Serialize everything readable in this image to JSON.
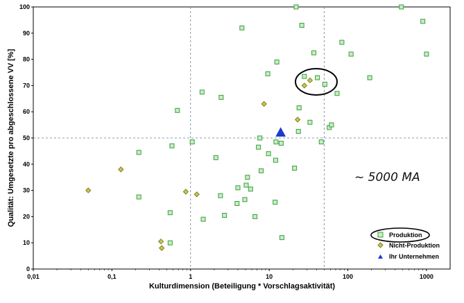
{
  "chart_data": {
    "type": "scatter",
    "xlabel": "Kulturdimension (Beteiligung * Vorschlagsaktivität)",
    "ylabel": "Qualität: Umgesetzte pro abgeschlossene VV [%]",
    "x_scale": "log",
    "xlim": [
      0.01,
      2000
    ],
    "ylim": [
      0,
      100
    ],
    "x_ticks": [
      "0,01",
      "0,1",
      "1",
      "10",
      "100",
      "1000"
    ],
    "y_ticks": [
      "0",
      "10",
      "20",
      "30",
      "40",
      "50",
      "60",
      "70",
      "80",
      "90",
      "100"
    ],
    "reference_lines": {
      "x": [
        1,
        50
      ],
      "y": [
        50
      ]
    },
    "annotation": "~ 5000 MA",
    "legend": {
      "placement": "bottom-right"
    },
    "series": [
      {
        "name": "Produktion",
        "marker": "square",
        "color": "#3aa03a",
        "fill": "#c8ecc8",
        "points": [
          [
            0.22,
            27.5
          ],
          [
            0.22,
            44.5
          ],
          [
            0.55,
            21.5
          ],
          [
            0.55,
            10
          ],
          [
            0.58,
            47
          ],
          [
            0.68,
            60.5
          ],
          [
            1.05,
            48.5
          ],
          [
            1.4,
            67.5
          ],
          [
            1.45,
            19
          ],
          [
            2.1,
            42.5
          ],
          [
            2.4,
            28
          ],
          [
            2.45,
            65.5
          ],
          [
            2.7,
            20.5
          ],
          [
            3.9,
            25
          ],
          [
            4.0,
            31
          ],
          [
            4.5,
            92
          ],
          [
            4.9,
            26.5
          ],
          [
            5.1,
            32
          ],
          [
            5.3,
            35
          ],
          [
            5.8,
            30.5
          ],
          [
            6.6,
            20
          ],
          [
            7.3,
            46.5
          ],
          [
            7.6,
            50
          ],
          [
            7.9,
            37.5
          ],
          [
            9.6,
            74.5
          ],
          [
            9.8,
            44
          ],
          [
            11.9,
            25.5
          ],
          [
            12.1,
            41.5
          ],
          [
            12.2,
            48.5
          ],
          [
            12.5,
            79
          ],
          [
            14.2,
            48
          ],
          [
            14.5,
            12
          ],
          [
            21,
            38.5
          ],
          [
            22,
            100
          ],
          [
            23.5,
            52.5
          ],
          [
            24,
            61.5
          ],
          [
            26,
            93
          ],
          [
            28,
            73.5
          ],
          [
            33,
            56
          ],
          [
            37,
            82.5
          ],
          [
            41,
            73
          ],
          [
            46,
            48.5
          ],
          [
            51,
            70.5
          ],
          [
            58,
            54
          ],
          [
            62,
            55
          ],
          [
            73,
            67
          ],
          [
            84,
            86.5
          ],
          [
            110,
            82
          ],
          [
            190,
            73
          ],
          [
            480,
            100
          ],
          [
            900,
            94.5
          ],
          [
            1000,
            82
          ]
        ]
      },
      {
        "name": "Nicht-Produktion",
        "marker": "diamond",
        "color": "#808020",
        "fill": "#c8c850",
        "points": [
          [
            0.05,
            30
          ],
          [
            0.13,
            38
          ],
          [
            0.42,
            10.5
          ],
          [
            0.43,
            8
          ],
          [
            0.87,
            29.5
          ],
          [
            1.2,
            28.5
          ],
          [
            8.6,
            63
          ],
          [
            23,
            57
          ],
          [
            28,
            70
          ],
          [
            33,
            72
          ]
        ]
      },
      {
        "name": "Ihr Unternehmen",
        "marker": "triangle",
        "color": "#1a3ad0",
        "fill": "#1a3ad0",
        "points": [
          [
            14,
            52
          ]
        ]
      }
    ]
  }
}
